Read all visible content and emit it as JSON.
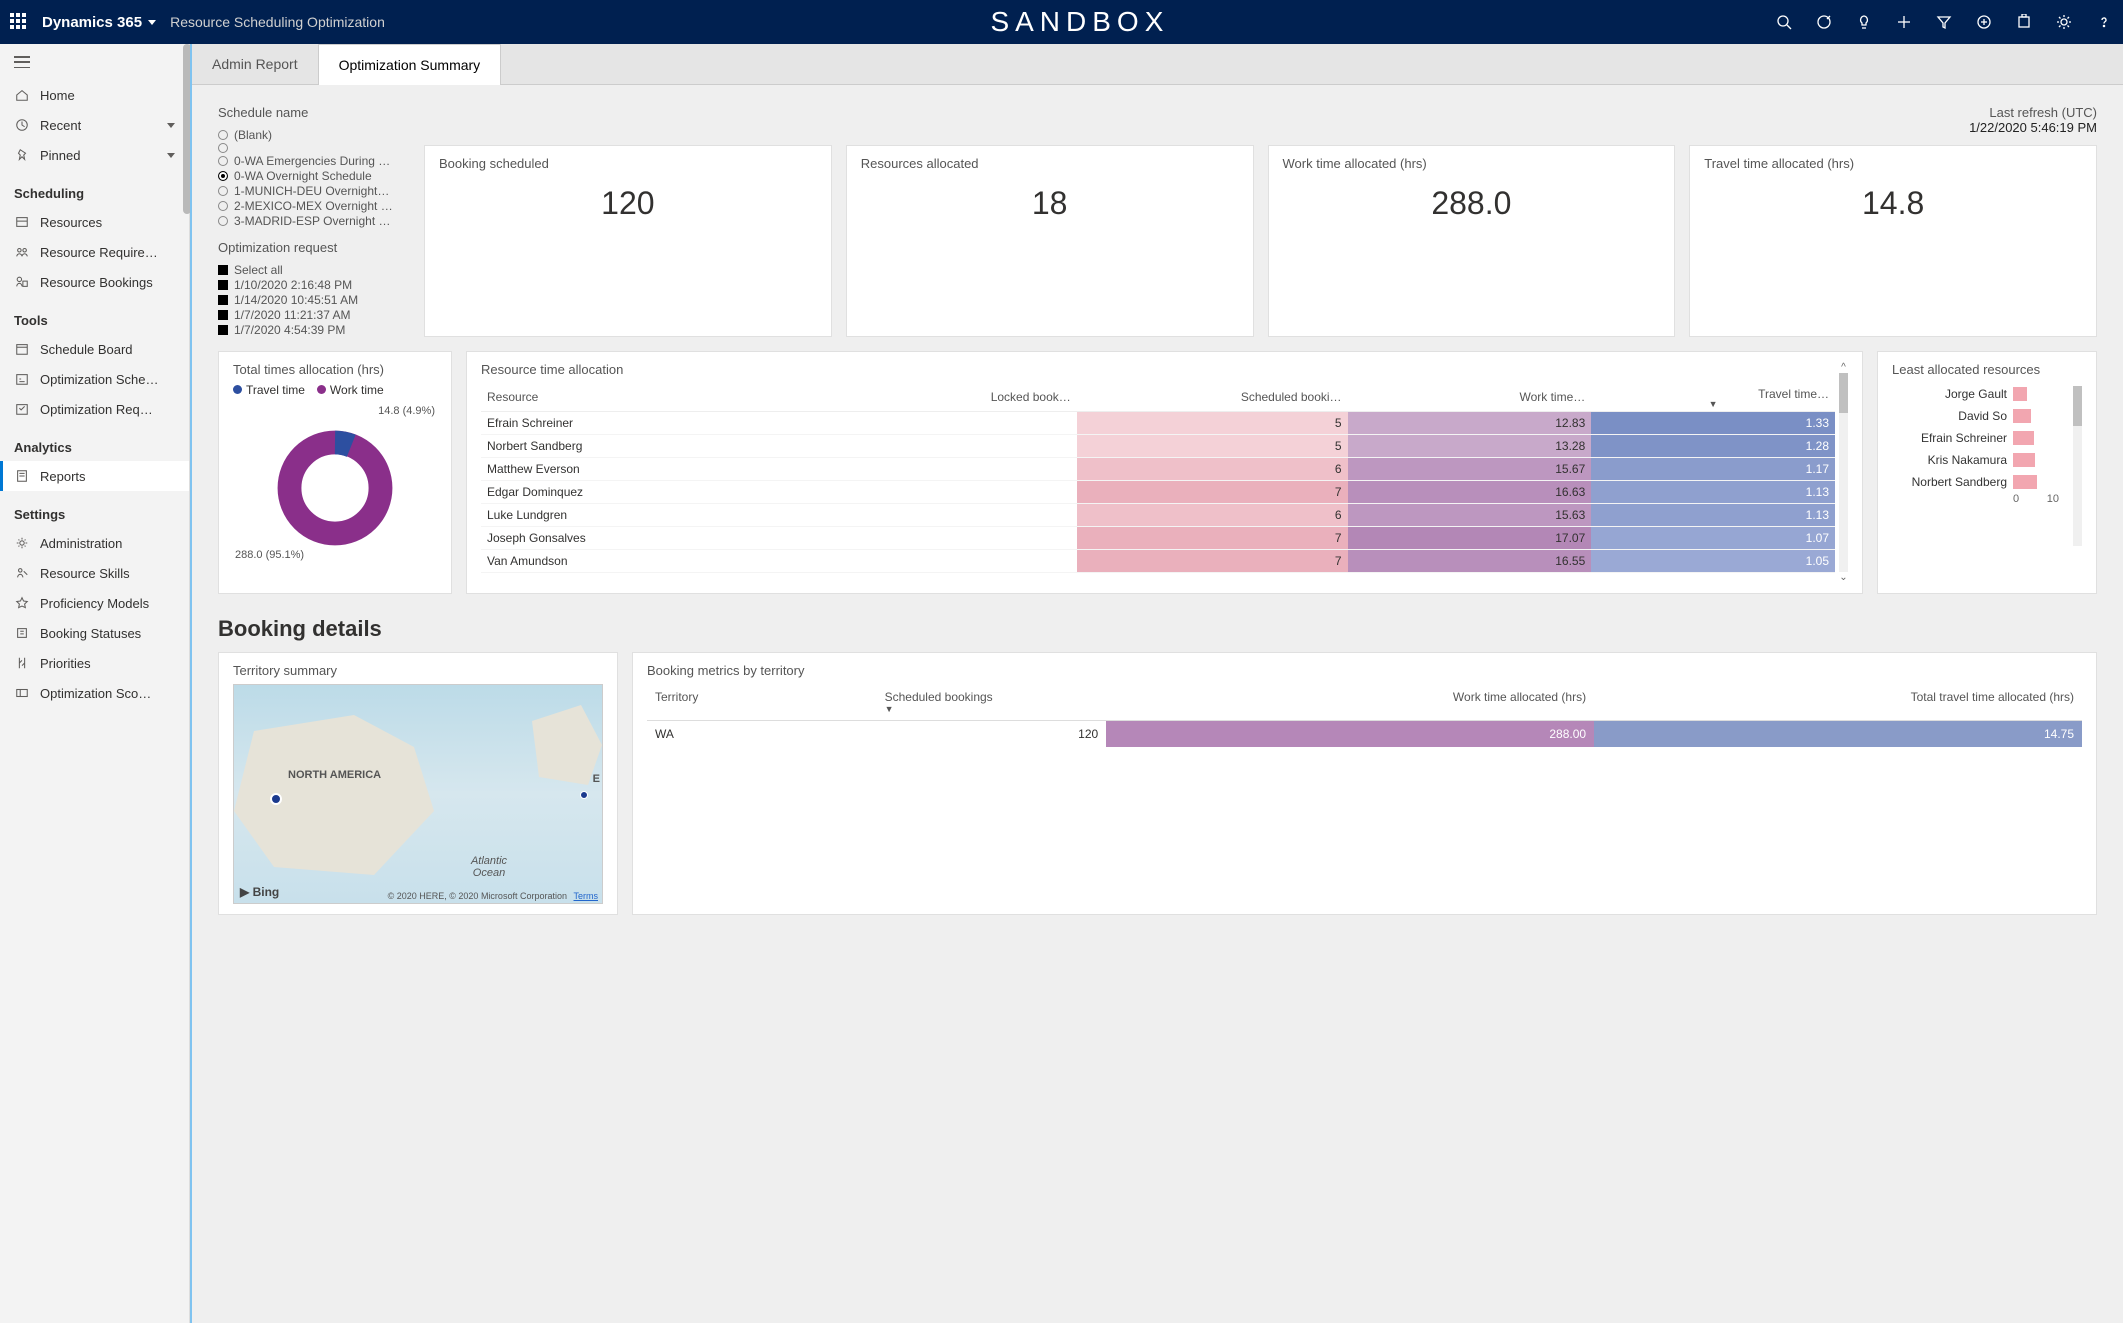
{
  "topbar": {
    "brand": "Dynamics 365",
    "module": "Resource Scheduling Optimization",
    "sandbox": "SANDBOX"
  },
  "sidebar": {
    "home": "Home",
    "recent": "Recent",
    "pinned": "Pinned",
    "sections": {
      "scheduling": "Scheduling",
      "tools": "Tools",
      "analytics": "Analytics",
      "settings": "Settings"
    },
    "items": {
      "resources": "Resources",
      "resourcereq": "Resource Require…",
      "resourcebookings": "Resource Bookings",
      "scheduleboard": "Schedule Board",
      "optsched": "Optimization Sche…",
      "optreq": "Optimization Req…",
      "reports": "Reports",
      "administration": "Administration",
      "resourceskills": "Resource Skills",
      "profmodels": "Proficiency Models",
      "bookingstatuses": "Booking Statuses",
      "priorities": "Priorities",
      "optscore": "Optimization Sco…"
    }
  },
  "tabs": {
    "admin": "Admin Report",
    "summary": "Optimization Summary"
  },
  "filters": {
    "scheduleTitle": "Schedule name",
    "schedules": [
      {
        "label": "(Blank)",
        "selected": false
      },
      {
        "label": "",
        "selected": false
      },
      {
        "label": "0-WA Emergencies During …",
        "selected": false
      },
      {
        "label": "0-WA Overnight Schedule",
        "selected": true
      },
      {
        "label": "1-MUNICH-DEU Overnight…",
        "selected": false
      },
      {
        "label": "2-MEXICO-MEX Overnight …",
        "selected": false
      },
      {
        "label": "3-MADRID-ESP Overnight …",
        "selected": false
      }
    ],
    "optReqTitle": "Optimization request",
    "optReqs": [
      "Select all",
      "1/10/2020 2:16:48 PM",
      "1/14/2020 10:45:51 AM",
      "1/7/2020 11:21:37 AM",
      "1/7/2020 4:54:39 PM"
    ]
  },
  "refresh": {
    "label": "Last refresh (UTC)",
    "ts": "1/22/2020 5:46:19 PM"
  },
  "kpis": [
    {
      "label": "Booking scheduled",
      "value": "120"
    },
    {
      "label": "Resources allocated",
      "value": "18"
    },
    {
      "label": "Work time allocated (hrs)",
      "value": "288.0"
    },
    {
      "label": "Travel time allocated (hrs)",
      "value": "14.8"
    }
  ],
  "donut": {
    "title": "Total times allocation (hrs)",
    "legend": {
      "travel": "Travel time",
      "work": "Work time"
    },
    "slices": [
      {
        "label": "Work time",
        "value": 288.0,
        "pct": 95.1,
        "color": "#8a2f8a"
      },
      {
        "label": "Travel time",
        "value": 14.8,
        "pct": 4.9,
        "color": "#2d4fa0"
      }
    ],
    "callout_travel": "14.8 (4.9%)",
    "callout_work": "288.0 (95.1%)"
  },
  "resourceTable": {
    "title": "Resource time allocation",
    "columns": [
      "Resource",
      "Locked book…",
      "Scheduled booki…",
      "Work time…",
      "Travel time…"
    ],
    "rows": [
      {
        "name": "Efrain Schreiner",
        "locked": "",
        "sched": 5,
        "work": 12.83,
        "travel": 1.33
      },
      {
        "name": "Norbert Sandberg",
        "locked": "",
        "sched": 5,
        "work": 13.28,
        "travel": 1.28
      },
      {
        "name": "Matthew Everson",
        "locked": "",
        "sched": 6,
        "work": 15.67,
        "travel": 1.17
      },
      {
        "name": "Edgar Dominquez",
        "locked": "",
        "sched": 7,
        "work": 16.63,
        "travel": 1.13
      },
      {
        "name": "Luke Lundgren",
        "locked": "",
        "sched": 6,
        "work": 15.63,
        "travel": 1.13
      },
      {
        "name": "Joseph Gonsalves",
        "locked": "",
        "sched": 7,
        "work": 17.07,
        "travel": 1.07
      },
      {
        "name": "Van Amundson",
        "locked": "",
        "sched": 7,
        "work": 16.55,
        "travel": 1.05
      }
    ],
    "heat": {
      "sched_bg": [
        "#f4d1d7",
        "#f4d1d7",
        "#efc0c9",
        "#eab0bc",
        "#efc0c9",
        "#eab0bc",
        "#eab0bc"
      ],
      "work_bg": [
        "#c8a9ca",
        "#c8a9ca",
        "#bd97c0",
        "#b88fbb",
        "#bd97c0",
        "#b387b6",
        "#b88fbb"
      ],
      "travel_bg": [
        "#7a8fc5",
        "#7f93c7",
        "#8a9ccc",
        "#8fa0cf",
        "#8fa0cf",
        "#96a6d3",
        "#9aa9d5"
      ]
    }
  },
  "leastAlloc": {
    "title": "Least allocated resources",
    "max": 10,
    "axis": [
      "0",
      "10"
    ],
    "bars": [
      {
        "label": "Jorge Gault",
        "value": 2.0
      },
      {
        "label": "David So",
        "value": 2.6
      },
      {
        "label": "Efrain Schreiner",
        "value": 3.0
      },
      {
        "label": "Kris Nakamura",
        "value": 3.2
      },
      {
        "label": "Norbert Sandberg",
        "value": 3.4
      }
    ],
    "bar_color": "#f2a6b0"
  },
  "bookingDetails": {
    "header": "Booking details",
    "mapTitle": "Territory summary",
    "mapLabels": {
      "na": "NORTH AMERICA",
      "ocean": "Atlantic Ocean",
      "eu": "E"
    },
    "attribution": "© 2020 HERE, © 2020 Microsoft Corporation",
    "terms": "Terms",
    "bing": "▶ Bing",
    "metricsTitle": "Booking metrics by territory",
    "metricsCols": [
      "Territory",
      "Scheduled bookings",
      "Work time allocated (hrs)",
      "Total travel time allocated (hrs)"
    ],
    "metricsRow": {
      "territory": "WA",
      "sched": "120",
      "work": "288.00",
      "travel": "14.75"
    }
  }
}
